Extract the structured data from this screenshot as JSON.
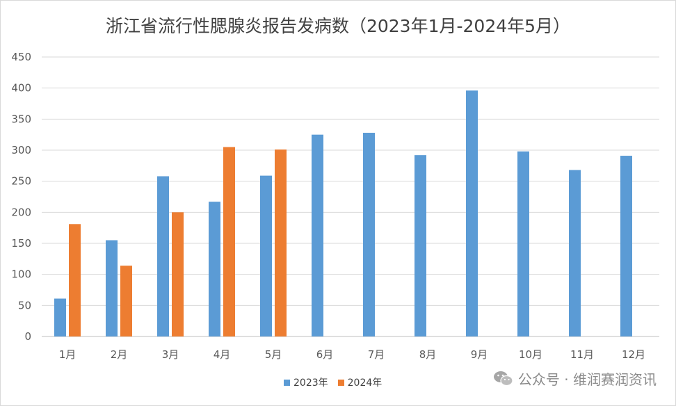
{
  "chart_data": {
    "type": "bar",
    "title": "浙江省流行性腮腺炎报告发病数（2023年1月-2024年5月）",
    "categories": [
      "1月",
      "2月",
      "3月",
      "4月",
      "5月",
      "6月",
      "7月",
      "8月",
      "9月",
      "10月",
      "11月",
      "12月"
    ],
    "series": [
      {
        "name": "2023年",
        "color": "#5b9bd5",
        "values": [
          61,
          155,
          258,
          217,
          259,
          325,
          328,
          292,
          396,
          298,
          268,
          291
        ]
      },
      {
        "name": "2024年",
        "color": "#ed7d31",
        "values": [
          181,
          114,
          200,
          305,
          301,
          null,
          null,
          null,
          null,
          null,
          null,
          null
        ]
      }
    ],
    "ylim": [
      0,
      450
    ],
    "yticks": [
      0,
      50,
      100,
      150,
      200,
      250,
      300,
      350,
      400,
      450
    ],
    "grid": true,
    "legend_position": "bottom"
  },
  "watermark": {
    "icon": "wechat-icon",
    "text": "公众号 · 维润赛润资讯"
  }
}
